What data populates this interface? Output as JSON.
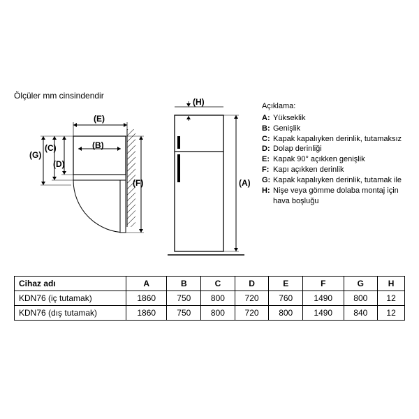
{
  "title": "Ölçüler mm cinsindendir",
  "legend": {
    "header": "Açıklama:",
    "items": [
      {
        "key": "A",
        "desc": "Yükseklik"
      },
      {
        "key": "B",
        "desc": "Genişlik"
      },
      {
        "key": "C",
        "desc": "Kapak kapalıyken derinlik, tutamaksız"
      },
      {
        "key": "D",
        "desc": "Dolap derinliği"
      },
      {
        "key": "E",
        "desc": "Kapak 90° açıkken genişlik"
      },
      {
        "key": "F",
        "desc": "Kapı açıkken derinlik"
      },
      {
        "key": "G",
        "desc": "Kapak kapalıyken derinlik, tutamak ile"
      },
      {
        "key": "H",
        "desc": "Nişe veya gömme dolaba montaj için hava boşluğu"
      }
    ]
  },
  "diagram": {
    "labels": {
      "A": "(A)",
      "B": "(B)",
      "C": "(C)",
      "D": "(D)",
      "E": "(E)",
      "F": "(F)",
      "G": "(G)",
      "H": "(H)"
    },
    "line_color": "#000000",
    "line_width": 1,
    "hatch_color": "#000000",
    "fridge_fill": "#ffffff",
    "arrow_size": 4
  },
  "table": {
    "header": [
      "Cihaz adı",
      "A",
      "B",
      "C",
      "D",
      "E",
      "F",
      "G",
      "H"
    ],
    "rows": [
      {
        "name": "KDN76 (iç tutamak)",
        "vals": [
          "1860",
          "750",
          "800",
          "720",
          "760",
          "1490",
          "800",
          "12"
        ]
      },
      {
        "name": "KDN76 (dış tutamak)",
        "vals": [
          "1860",
          "750",
          "800",
          "720",
          "800",
          "1490",
          "840",
          "12"
        ]
      }
    ]
  }
}
